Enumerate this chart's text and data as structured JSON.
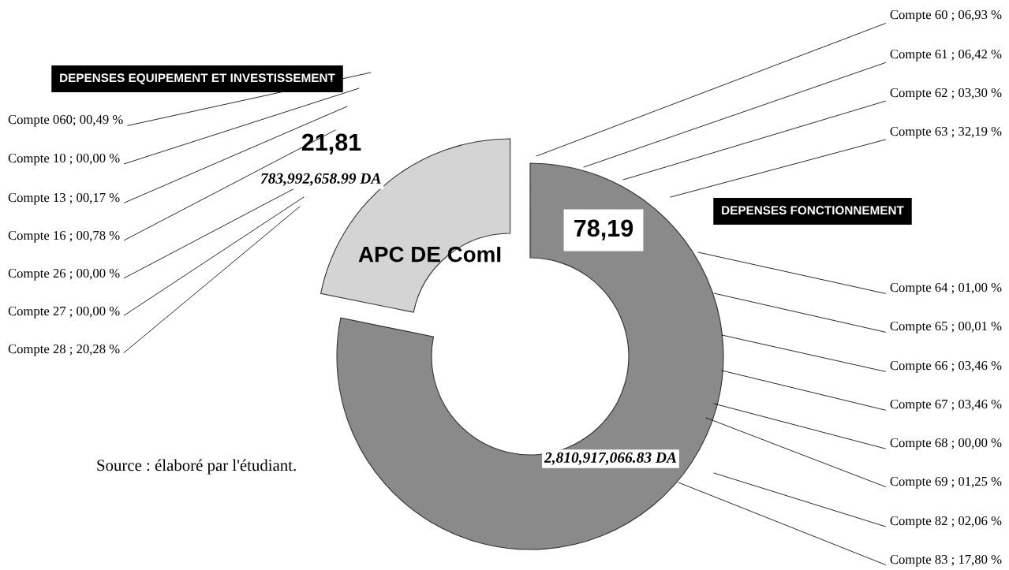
{
  "chart_data": {
    "type": "donut",
    "title": "APC DE ComI",
    "categories": [
      "DEPENSES FONCTIONNEMENT",
      "DEPENSES EQUIPEMENT ET INVESTISSEMENT"
    ],
    "values": [
      78.19,
      21.81
    ],
    "value_labels": [
      "78,19",
      "21,81"
    ],
    "colors": [
      "#8a8a8a",
      "#d4d4d4"
    ],
    "annotations": [
      "Compte 060; 00,49 %",
      "Compte 10 ; 00,00 %",
      "Compte 13 ; 00,17 %",
      "Compte 16 ; 00,78 %",
      "Compte 26 ; 00,00 %",
      "Compte 27 ; 00,00 %",
      "Compte 28 ; 20,28 %",
      "Compte 60 ; 06,93 %",
      "Compte 61 ; 06,42 %",
      "Compte 62 ; 03,30 %",
      "Compte 63 ; 32,19 %",
      "Compte 64 ; 01,00 %",
      "Compte 65 ; 00,01 %",
      "Compte 66 ; 03,46 %",
      "Compte 67 ; 03,46 %",
      "Compte 68 ; 00,00 %",
      "Compte 69 ; 01,25 %",
      "Compte 82 ; 02,06 %",
      "Compte 83 ; 17,80 %",
      "783,992,658.99 DA",
      "2,810,917,066.83 DA",
      "Source : élaboré par l'étudiant."
    ]
  }
}
